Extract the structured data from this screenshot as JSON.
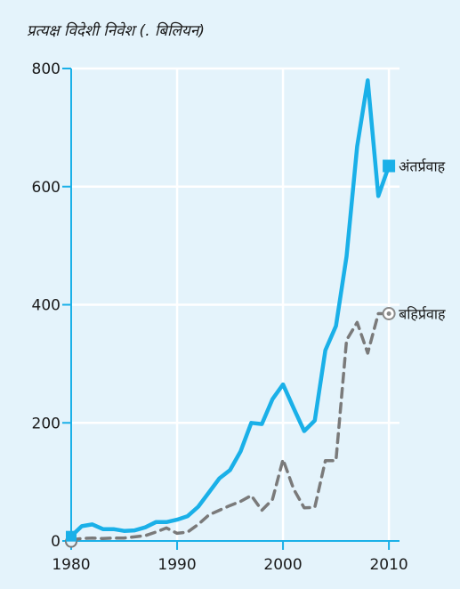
{
  "chart_data": {
    "type": "line",
    "title": "प्रत्यक्ष विदेशी निवेश (. बिलियन)",
    "xlabel": "",
    "ylabel": "",
    "xlim": [
      1980,
      2011
    ],
    "ylim": [
      0,
      800
    ],
    "x_ticks": [
      1980,
      1990,
      2000,
      2010
    ],
    "y_ticks": [
      0,
      200,
      400,
      600,
      800
    ],
    "grid": true,
    "x": [
      1980,
      1981,
      1982,
      1983,
      1984,
      1985,
      1986,
      1987,
      1988,
      1989,
      1990,
      1991,
      1992,
      1993,
      1994,
      1995,
      1996,
      1997,
      1998,
      1999,
      2000,
      2001,
      2002,
      2003,
      2004,
      2005,
      2006,
      2007,
      2008,
      2009,
      2010
    ],
    "series": [
      {
        "name": "अंतर्प्रवाह",
        "color": "#1ab0e8",
        "style": "solid",
        "marker": "square",
        "values": [
          8,
          25,
          28,
          20,
          20,
          17,
          18,
          23,
          32,
          32,
          36,
          42,
          58,
          82,
          106,
          120,
          152,
          200,
          198,
          240,
          265,
          225,
          186,
          204,
          323,
          364,
          482,
          668,
          780,
          584,
          635
        ]
      },
      {
        "name": "बहिर्प्रवाह",
        "color": "#7a7a7a",
        "style": "dashed",
        "marker": "circle",
        "values": [
          2,
          4,
          5,
          4,
          5,
          5,
          7,
          9,
          15,
          22,
          13,
          15,
          28,
          44,
          52,
          60,
          67,
          77,
          52,
          70,
          138,
          88,
          56,
          57,
          136,
          136,
          340,
          370,
          318,
          385,
          385
        ]
      }
    ]
  }
}
